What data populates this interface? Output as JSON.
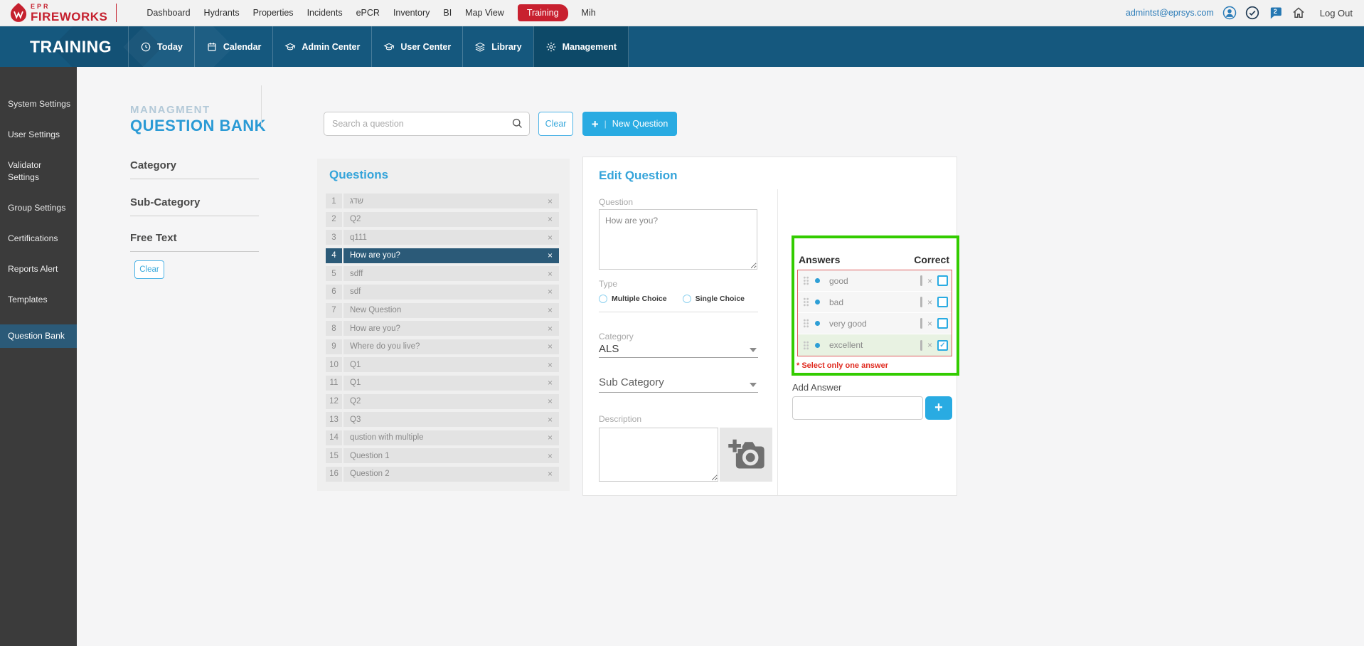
{
  "topbar": {
    "logo": {
      "line1": "EPR",
      "line2": "FIREWORKS",
      "icon": "flame-logo-icon"
    },
    "nav": [
      {
        "label": "Dashboard"
      },
      {
        "label": "Hydrants"
      },
      {
        "label": "Properties"
      },
      {
        "label": "Incidents"
      },
      {
        "label": "ePCR"
      },
      {
        "label": "Inventory"
      },
      {
        "label": "BI"
      },
      {
        "label": "Map View"
      },
      {
        "label": "Training",
        "active": true
      },
      {
        "label": "Mih"
      }
    ],
    "user_email": "admintst@eprsys.com",
    "icons": [
      "user-avatar-icon",
      "check-circle-icon",
      "chat-bubble-icon",
      "home-icon"
    ],
    "notification_count": "2",
    "logout_label": "Log Out"
  },
  "subnav": {
    "title": "TRAINING",
    "tabs": [
      {
        "label": "Today",
        "icon": "clock-icon"
      },
      {
        "label": "Calendar",
        "icon": "calendar-icon"
      },
      {
        "label": "Admin Center",
        "icon": "graduation-cap-icon"
      },
      {
        "label": "User Center",
        "icon": "graduation-cap-icon"
      },
      {
        "label": "Library",
        "icon": "layers-icon"
      },
      {
        "label": "Management",
        "icon": "gear-icon",
        "active": true
      }
    ]
  },
  "sidebar": {
    "items": [
      {
        "label": "System Settings"
      },
      {
        "label": "User Settings"
      },
      {
        "label": "Validator Settings"
      },
      {
        "label": "Group Settings"
      },
      {
        "label": "Certifications"
      },
      {
        "label": "Reports Alert"
      },
      {
        "label": "Templates"
      },
      {
        "label": "Question Bank",
        "active": true
      }
    ]
  },
  "header": {
    "eyebrow": "MANAGMENT",
    "title": "QUESTION BANK",
    "search_placeholder": "Search a question",
    "search_icon": "magnifier-icon",
    "clear_label": "Clear",
    "new_question_label": "New Question",
    "new_question_icon": "plus-icon"
  },
  "filters": {
    "category_label": "Category",
    "subcategory_label": "Sub-Category",
    "freetext_label": "Free Text",
    "clear_label": "Clear"
  },
  "questions": {
    "title": "Questions",
    "selected_num": 4,
    "remove_icon": "x-close-icon",
    "items": [
      {
        "num": "1",
        "text": "שדג"
      },
      {
        "num": "2",
        "text": "Q2"
      },
      {
        "num": "3",
        "text": "q111"
      },
      {
        "num": "4",
        "text": "How are you?"
      },
      {
        "num": "5",
        "text": "sdff"
      },
      {
        "num": "6",
        "text": "sdf"
      },
      {
        "num": "7",
        "text": "New Question"
      },
      {
        "num": "8",
        "text": "How are you?"
      },
      {
        "num": "9",
        "text": "Where do you live?"
      },
      {
        "num": "10",
        "text": "Q1"
      },
      {
        "num": "11",
        "text": "Q1"
      },
      {
        "num": "12",
        "text": "Q2"
      },
      {
        "num": "13",
        "text": "Q3"
      },
      {
        "num": "14",
        "text": "qustion with multiple"
      },
      {
        "num": "15",
        "text": "Question 1"
      },
      {
        "num": "16",
        "text": "Question 2"
      }
    ]
  },
  "editor": {
    "title": "Edit Question",
    "question_label": "Question",
    "question_value": "How are you?",
    "type_label": "Type",
    "type_options": [
      "Multiple Choice",
      "Single Choice"
    ],
    "type_selected": "",
    "category_label": "Category",
    "category_value": "ALS",
    "subcategory_label": "Sub Category",
    "description_label": "Description",
    "image_icon": "add-photo-camera-icon"
  },
  "answers": {
    "header": "Answers",
    "correct_header": "Correct",
    "drag_icon": "drag-handle-icon",
    "items": [
      {
        "text": "good",
        "correct": false
      },
      {
        "text": "bad",
        "correct": false
      },
      {
        "text": "very good",
        "correct": false
      },
      {
        "text": "excellent",
        "correct": true
      }
    ],
    "warning": "* Select only one answer",
    "add_label": "Add Answer",
    "add_icon": "plus-icon"
  },
  "colors": {
    "accent_blue": "#29abe2",
    "heading_blue": "#35a4da",
    "brand_red": "#c5202e",
    "subnav_blue": "#15587e",
    "selection_blue": "#2b5a78",
    "sidebar_gray": "#3b3b3b",
    "panel_green_border": "#33cc00",
    "answers_red_border": "#dd5c5c",
    "warning_red": "#e02b20",
    "checked_row_green": "#e8f2e2"
  }
}
